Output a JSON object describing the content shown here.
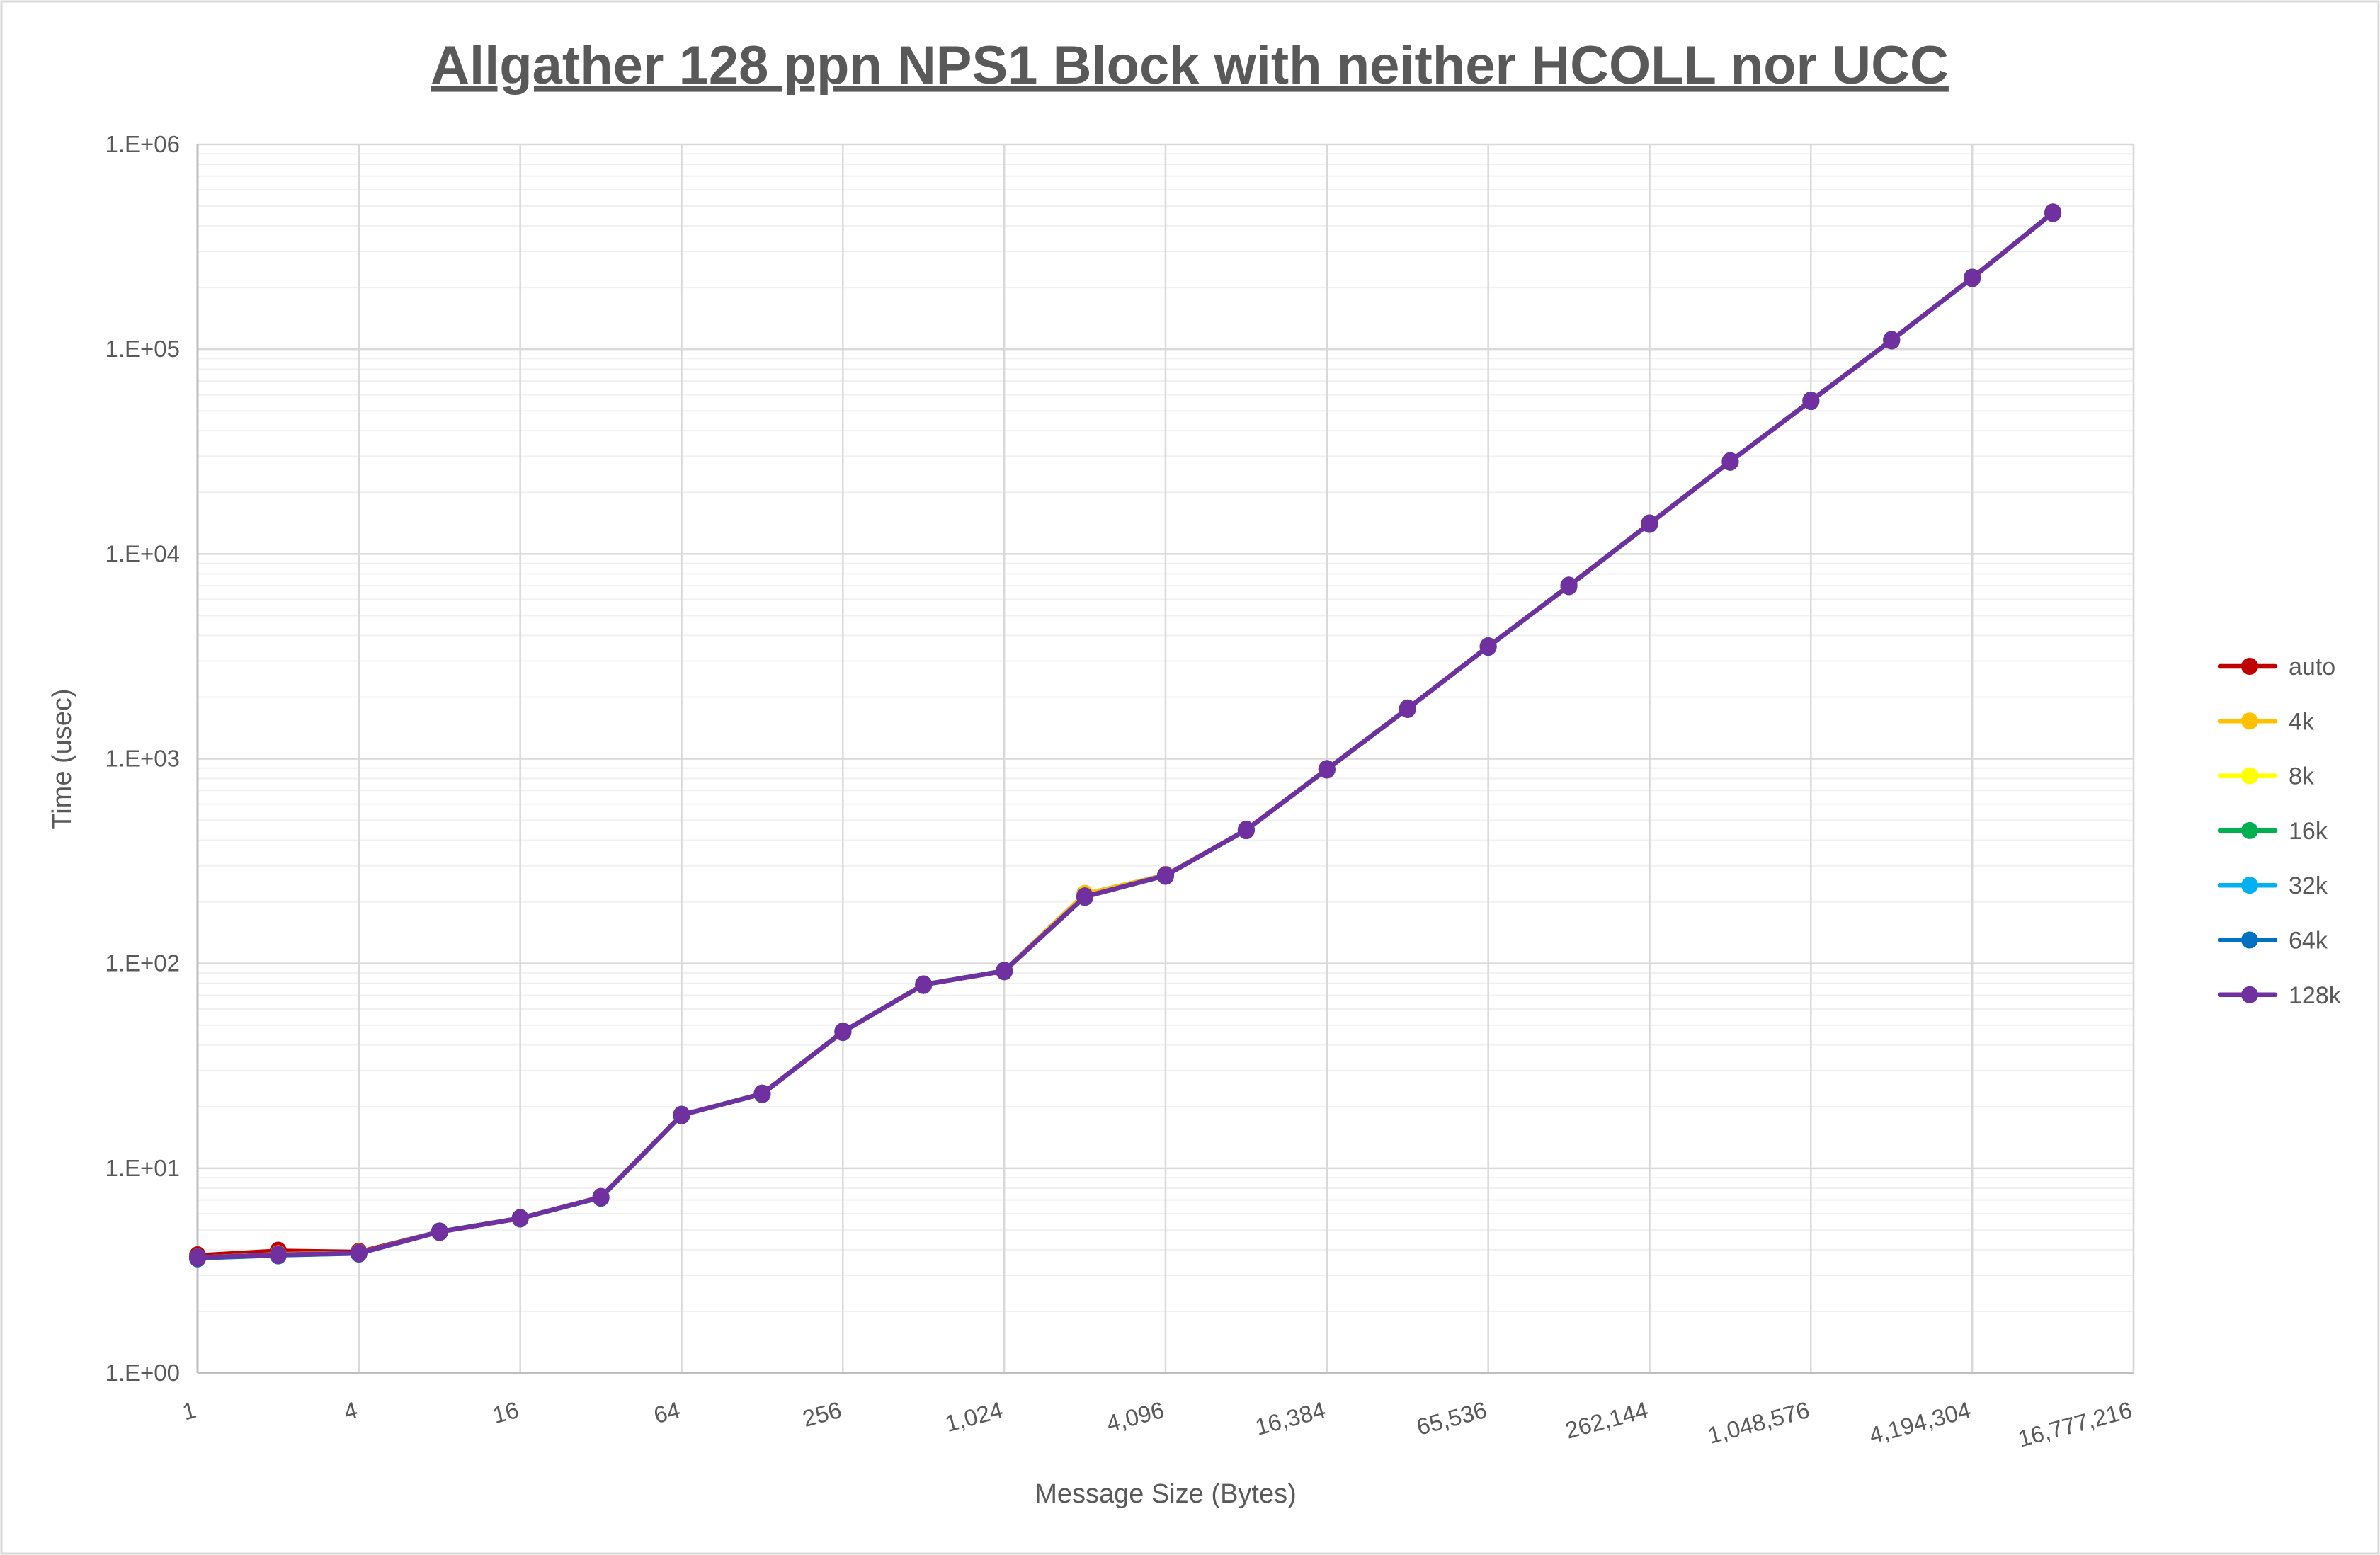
{
  "chart_data": {
    "type": "line",
    "title": "Allgather 128 ppn NPS1 Block with neither HCOLL nor UCC",
    "xlabel": "Message Size (Bytes)",
    "ylabel": "Time (usec)",
    "x_scale": "log2",
    "y_scale": "log10",
    "xlim": [
      1,
      16777216
    ],
    "ylim": [
      1,
      1000000
    ],
    "x_tick_labels": [
      "1",
      "4",
      "16",
      "64",
      "256",
      "1,024",
      "4,096",
      "16,384",
      "65,536",
      "262,144",
      "1,048,576",
      "4,194,304",
      "16,777,216"
    ],
    "y_tick_labels": [
      "1.E+00",
      "1.E+01",
      "1.E+02",
      "1.E+03",
      "1.E+04",
      "1.E+05",
      "1.E+06"
    ],
    "grid": true,
    "legend_position": "right",
    "x": [
      1,
      2,
      4,
      8,
      16,
      32,
      64,
      128,
      256,
      512,
      1024,
      2048,
      4096,
      8192,
      16384,
      32768,
      65536,
      131072,
      262144,
      524288,
      1048576,
      2097152,
      4194304,
      8388608
    ],
    "series": [
      {
        "name": "auto",
        "color": "#C00000",
        "values": [
          3.75,
          3.95,
          3.9,
          4.9,
          5.7,
          7.2,
          18.2,
          23.1,
          46.4,
          78.8,
          92,
          218,
          270,
          449,
          888,
          1755,
          3530,
          6985,
          14070,
          28300,
          56000,
          110700,
          223000,
          464000
        ]
      },
      {
        "name": "4k",
        "color": "#FFC000",
        "values": [
          3.66,
          3.8,
          3.86,
          4.9,
          5.7,
          7.2,
          18.2,
          23.1,
          46.4,
          78.8,
          92,
          218,
          270,
          449,
          888,
          1755,
          3530,
          6985,
          14070,
          28300,
          56000,
          110700,
          223000,
          464000
        ]
      },
      {
        "name": "8k",
        "color": "#FFFF00",
        "values": [
          3.66,
          3.78,
          3.85,
          4.9,
          5.7,
          7.2,
          18.2,
          23.1,
          46.4,
          78.8,
          92,
          212,
          269,
          449,
          888,
          1755,
          3530,
          6985,
          14070,
          28300,
          56000,
          110700,
          223000,
          464000
        ]
      },
      {
        "name": "16k",
        "color": "#00B050",
        "values": [
          3.66,
          3.78,
          3.85,
          4.9,
          5.7,
          7.2,
          18.2,
          23.1,
          46.4,
          78.8,
          92,
          212,
          269,
          449,
          888,
          1755,
          3530,
          6985,
          14070,
          28300,
          56000,
          110700,
          223000,
          464000
        ]
      },
      {
        "name": "32k",
        "color": "#00B0F0",
        "values": [
          3.64,
          3.76,
          3.84,
          4.9,
          5.7,
          7.2,
          18.2,
          23.1,
          46.4,
          78.8,
          92,
          212,
          269,
          449,
          888,
          1755,
          3530,
          6985,
          14070,
          28300,
          56000,
          110700,
          223000,
          464000
        ]
      },
      {
        "name": "64k",
        "color": "#0070C0",
        "values": [
          3.64,
          3.76,
          3.84,
          4.9,
          5.7,
          7.2,
          18.2,
          23.1,
          46.4,
          78.8,
          92,
          212,
          269,
          449,
          888,
          1755,
          3530,
          6985,
          14070,
          28300,
          56000,
          110700,
          223000,
          464000
        ]
      },
      {
        "name": "128k",
        "color": "#7030A0",
        "values": [
          3.66,
          3.78,
          3.85,
          4.89,
          5.7,
          7.23,
          18.2,
          23.1,
          46.4,
          78.8,
          91.8,
          212,
          269,
          449,
          888,
          1755,
          3530,
          6985,
          14070,
          28300,
          56000,
          110700,
          223000,
          464000
        ]
      }
    ]
  }
}
